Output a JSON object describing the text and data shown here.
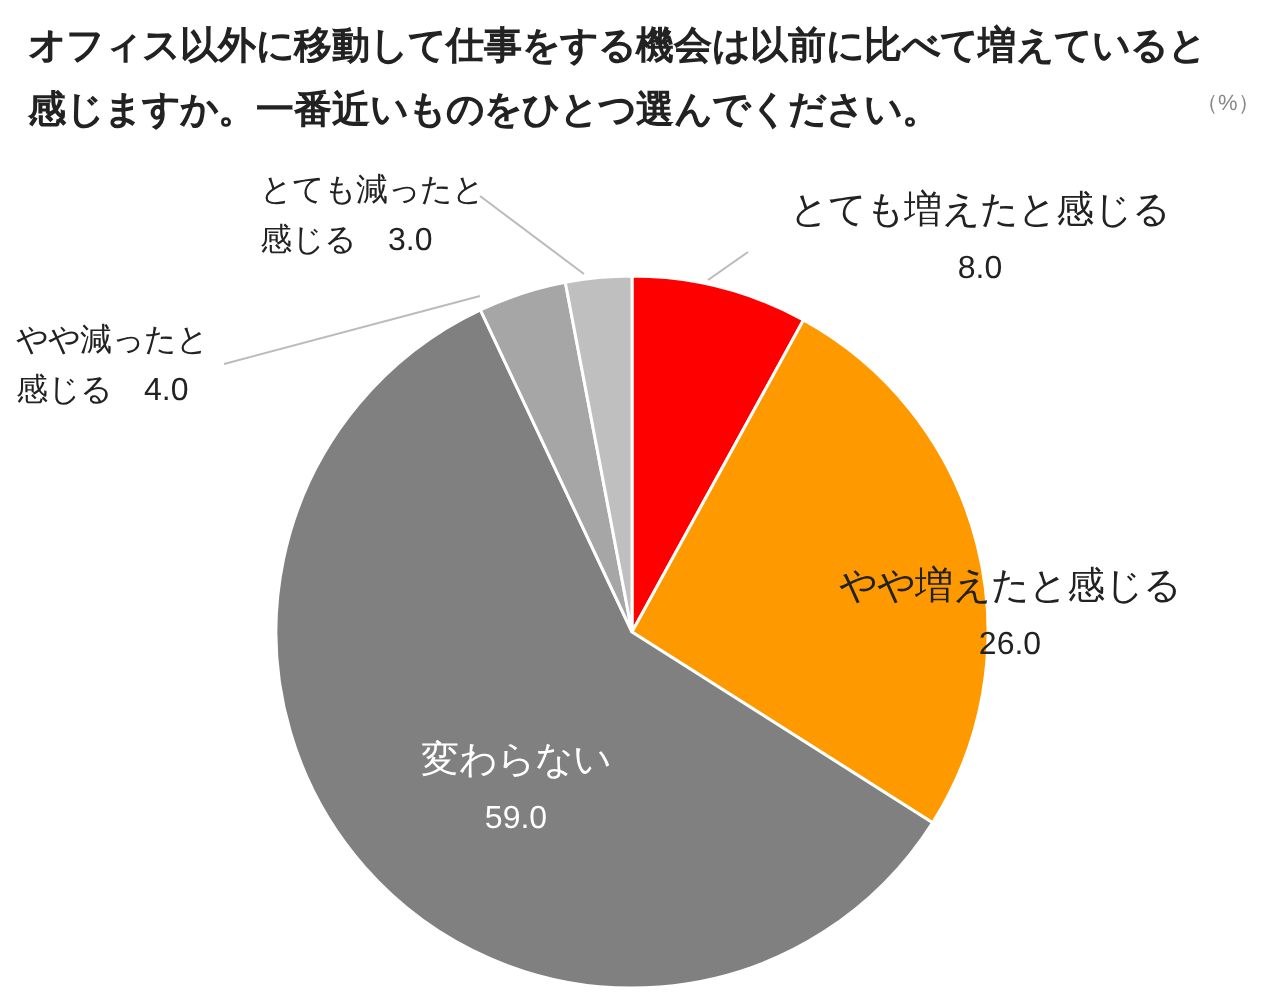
{
  "chart_data": {
    "type": "pie",
    "title": "オフィス以外に移動して仕事をする機会は以前に比べて増えていると感じますか。一番近いものをひとつ選んでください。",
    "annotations": [
      "（%）"
    ],
    "categories": [
      "とても増えたと感じる",
      "やや増えたと感じる",
      "変わらない",
      "やや減ったと感じる",
      "とても減ったと感じる"
    ],
    "values": [
      8,
      26,
      59,
      4,
      3
    ],
    "value_labels": [
      "8.0",
      "26.0",
      "59.0",
      "4.0",
      "3.0"
    ],
    "colors": [
      "#ff0000",
      "#ff9900",
      "#808080",
      "#a6a6a6",
      "#bfbfbf"
    ]
  }
}
